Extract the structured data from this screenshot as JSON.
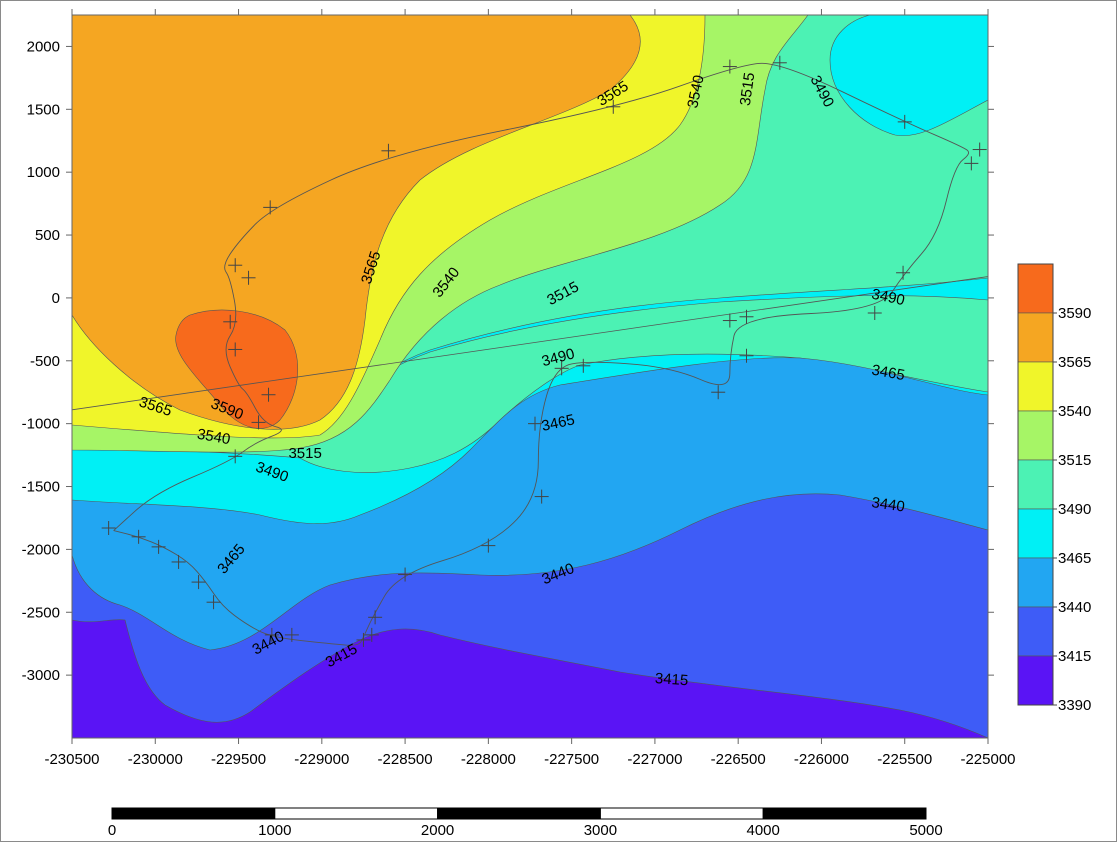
{
  "chart_data": {
    "type": "heatmap",
    "subtype": "filled-contour-map",
    "title": "",
    "xlabel": "",
    "ylabel": "",
    "xlim": [
      -230500,
      -225000
    ],
    "ylim": [
      -3500,
      2250
    ],
    "x_ticks": [
      -230500,
      -230000,
      -229500,
      -229000,
      -228500,
      -228000,
      -227500,
      -227000,
      -226500,
      -226000,
      -225500,
      -225000
    ],
    "x_tick_labels": [
      "-230500",
      "-230000",
      "-229500",
      "-229000",
      "-228500",
      "-228000",
      "-227500",
      "-227000",
      "-226500",
      "-226000",
      "-225500",
      "-225000"
    ],
    "y_ticks": [
      2000,
      1500,
      1000,
      500,
      0,
      -500,
      -1000,
      -1500,
      -2000,
      -2500,
      -3000
    ],
    "y_tick_labels": [
      "2000",
      "1500",
      "1000",
      "500",
      "0",
      "-500",
      "-1000",
      "-1500",
      "-2000",
      "-2500",
      "-3000"
    ],
    "contour_levels": [
      3390,
      3415,
      3440,
      3465,
      3490,
      3515,
      3540,
      3565,
      3590
    ],
    "legend": {
      "placement": "right",
      "bands": [
        {
          "from": 3390,
          "to": 3415,
          "color": "#5a14f5"
        },
        {
          "from": 3415,
          "to": 3440,
          "color": "#3e5cf7"
        },
        {
          "from": 3440,
          "to": 3465,
          "color": "#22a6f2"
        },
        {
          "from": 3465,
          "to": 3490,
          "color": "#00f0f5"
        },
        {
          "from": 3490,
          "to": 3515,
          "color": "#4cf2b4"
        },
        {
          "from": 3515,
          "to": 3540,
          "color": "#a6f566"
        },
        {
          "from": 3540,
          "to": 3565,
          "color": "#f0f52a"
        },
        {
          "from": 3565,
          "to": 3590,
          "color": "#f5a622"
        },
        {
          "from": 3590,
          "to": 3615,
          "color": "#f76a1c"
        }
      ],
      "labels": [
        "3590",
        "3565",
        "3540",
        "3515",
        "3490",
        "3465",
        "3440",
        "3415",
        "3390"
      ]
    },
    "contour_labels": [
      {
        "text": "3565",
        "x": -227250,
        "y": 1620,
        "angle": -32
      },
      {
        "text": "3540",
        "x": -226750,
        "y": 1640,
        "angle": -78
      },
      {
        "text": "3515",
        "x": -226440,
        "y": 1660,
        "angle": -82
      },
      {
        "text": "3490",
        "x": -226000,
        "y": 1640,
        "angle": 62
      },
      {
        "text": "3565",
        "x": -228700,
        "y": 240,
        "angle": -72
      },
      {
        "text": "3540",
        "x": -228250,
        "y": 120,
        "angle": -52
      },
      {
        "text": "3515",
        "x": -227550,
        "y": 30,
        "angle": -28
      },
      {
        "text": "3490",
        "x": -225600,
        "y": 0,
        "angle": 12
      },
      {
        "text": "3490",
        "x": -227580,
        "y": -480,
        "angle": -15
      },
      {
        "text": "3465",
        "x": -225600,
        "y": -600,
        "angle": 10
      },
      {
        "text": "3465",
        "x": -227580,
        "y": -1000,
        "angle": -12
      },
      {
        "text": "3565",
        "x": -230000,
        "y": -870,
        "angle": 18
      },
      {
        "text": "3590",
        "x": -229570,
        "y": -890,
        "angle": 22
      },
      {
        "text": "3540",
        "x": -229650,
        "y": -1110,
        "angle": 10
      },
      {
        "text": "3515",
        "x": -229100,
        "y": -1240,
        "angle": 0
      },
      {
        "text": "3490",
        "x": -229300,
        "y": -1390,
        "angle": 20
      },
      {
        "text": "3440",
        "x": -225600,
        "y": -1650,
        "angle": 8
      },
      {
        "text": "3465",
        "x": -229540,
        "y": -2080,
        "angle": -50
      },
      {
        "text": "3440",
        "x": -227580,
        "y": -2200,
        "angle": -22
      },
      {
        "text": "3440",
        "x": -229320,
        "y": -2750,
        "angle": -28
      },
      {
        "text": "3415",
        "x": -228880,
        "y": -2850,
        "angle": -28
      },
      {
        "text": "3415",
        "x": -226900,
        "y": -3040,
        "angle": 4
      }
    ],
    "well_path": {
      "x": [
        -230250,
        -230100,
        -229950,
        -229800,
        -229700,
        -229600,
        -229450,
        -229300,
        -228950,
        -228780,
        -228750,
        -228700,
        -228550,
        -228000,
        -227700,
        -227700,
        -227600,
        -227400,
        -226900,
        -226550,
        -226550,
        -226500,
        -225650,
        -225500,
        -225300,
        -225200,
        -225100,
        -225150,
        -225500,
        -226250,
        -226500,
        -227200,
        -228600,
        -229300,
        -229500,
        -229600,
        -229550,
        -229500,
        -229600,
        -229500,
        -229450,
        -229350,
        -229200,
        -229400,
        -229550,
        -230000,
        -230250
      ],
      "y": [
        -1850,
        -1900,
        -1980,
        -2100,
        -2250,
        -2450,
        -2600,
        -2700,
        -2750,
        -2770,
        -2700,
        -2550,
        -2200,
        -1980,
        -1600,
        -1000,
        -550,
        -500,
        -550,
        -750,
        -450,
        -150,
        -100,
        200,
        500,
        1050,
        1150,
        1200,
        1400,
        1880,
        1850,
        1520,
        1150,
        720,
        450,
        250,
        160,
        -200,
        -400,
        -700,
        -750,
        -1000,
        -1050,
        -1150,
        -1300,
        -1550,
        -1850
      ],
      "markers": [
        [
          -230280,
          -1830
        ],
        [
          -230100,
          -1900
        ],
        [
          -229980,
          -1980
        ],
        [
          -229860,
          -2100
        ],
        [
          -229740,
          -2260
        ],
        [
          -229650,
          -2420
        ],
        [
          -229300,
          -2680
        ],
        [
          -229180,
          -2680
        ],
        [
          -228750,
          -2720
        ],
        [
          -228700,
          -2680
        ],
        [
          -228680,
          -2540
        ],
        [
          -228500,
          -2200
        ],
        [
          -228000,
          -1970
        ],
        [
          -227680,
          -1580
        ],
        [
          -227720,
          -1000
        ],
        [
          -227560,
          -560
        ],
        [
          -227430,
          -540
        ],
        [
          -226620,
          -750
        ],
        [
          -226450,
          -460
        ],
        [
          -226550,
          -180
        ],
        [
          -226450,
          -150
        ],
        [
          -225680,
          -120
        ],
        [
          -225510,
          200
        ],
        [
          -225100,
          1070
        ],
        [
          -225050,
          1180
        ],
        [
          -225500,
          1400
        ],
        [
          -226250,
          1870
        ],
        [
          -226550,
          1840
        ],
        [
          -227250,
          1520
        ],
        [
          -228600,
          1170
        ],
        [
          -229310,
          720
        ],
        [
          -229520,
          260
        ],
        [
          -229440,
          160
        ],
        [
          -229550,
          -190
        ],
        [
          -229520,
          -410
        ],
        [
          -229320,
          -770
        ],
        [
          -229380,
          -990
        ],
        [
          -229520,
          -1260
        ]
      ]
    },
    "cross_line": {
      "x": [
        -230500,
        -225000
      ],
      "y": [
        -890,
        170
      ]
    },
    "scale_bar": {
      "labels": [
        "0",
        "1000",
        "2000",
        "3000",
        "4000",
        "5000"
      ],
      "segments": [
        "black",
        "white",
        "black",
        "white",
        "black"
      ]
    }
  }
}
